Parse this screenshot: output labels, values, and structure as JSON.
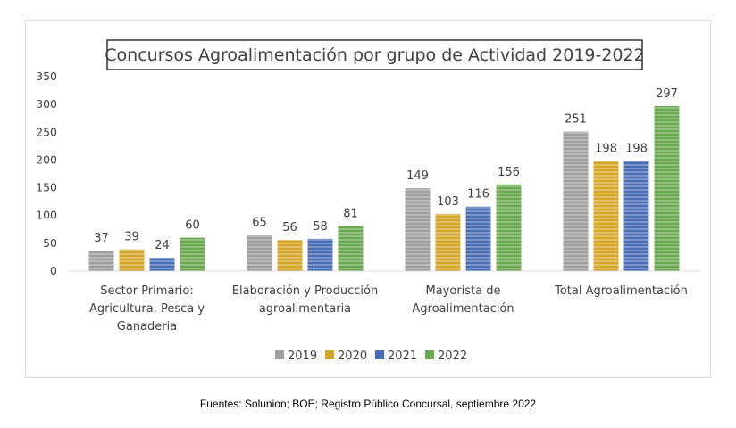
{
  "chart_data": {
    "type": "bar",
    "title": "Concursos Agroalimentación por grupo de Actividad 2019-2022",
    "categories": [
      [
        "Sector Primario:",
        "Agricultura, Pesca y",
        "Ganaderia"
      ],
      [
        "Elaboración y Producción",
        "agroalimentaria"
      ],
      [
        "Mayorista de",
        "Agroalimentación"
      ],
      [
        "Total Agroalimentación"
      ]
    ],
    "series": [
      {
        "name": "2019",
        "color": "#9e9e9e",
        "values": [
          37,
          65,
          149,
          251
        ]
      },
      {
        "name": "2020",
        "color": "#d4a62a",
        "values": [
          39,
          56,
          103,
          198
        ]
      },
      {
        "name": "2021",
        "color": "#4a6eb5",
        "values": [
          24,
          58,
          116,
          198
        ]
      },
      {
        "name": "2022",
        "color": "#6aa84f",
        "values": [
          60,
          81,
          156,
          297
        ]
      }
    ],
    "yticks": [
      0,
      50,
      100,
      150,
      200,
      250,
      300,
      350
    ],
    "ylim": [
      0,
      350
    ],
    "xlabel": "",
    "ylabel": "",
    "legend_position": "bottom",
    "grid": false
  },
  "source": "Fuentes: Solunion; BOE; Registro Público Concursal, septiembre 2022"
}
